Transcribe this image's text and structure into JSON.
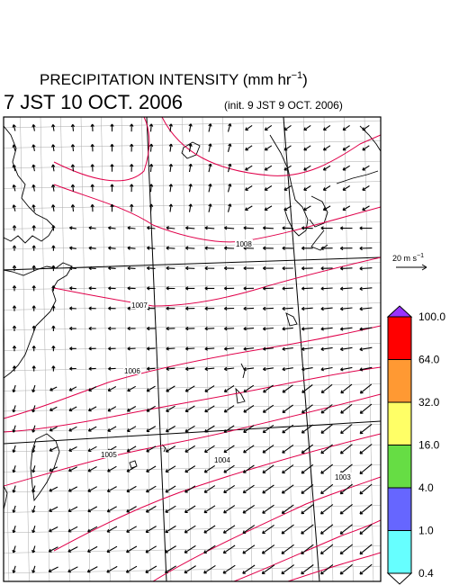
{
  "title": "PRECIPITATION INTENSITY (mm hr",
  "title_exp": "−1",
  "title_close": ")",
  "valid_time": "7 JST 10 OCT. 2006",
  "init_time": "(init. 9 JST 9 OCT. 2006)",
  "vector_ref": {
    "label": "20 m s",
    "label_exp": "−1"
  },
  "colorbar": {
    "labels": [
      "100.0",
      "64.0",
      "32.0",
      "16.0",
      "4.0",
      "1.0",
      "0.4"
    ],
    "colors": [
      "#ff0000",
      "#ff9933",
      "#ffff66",
      "#66dd44",
      "#6666ff",
      "#66ffff"
    ],
    "over_color": "#9933ff",
    "under_color": "#ffffff"
  },
  "isobars": [
    "1008",
    "1007",
    "1006",
    "1005",
    "1004",
    "1003"
  ],
  "colors": {
    "isobar": "#e0004a",
    "grid": "#aaaaaa",
    "coast": "#000000"
  }
}
